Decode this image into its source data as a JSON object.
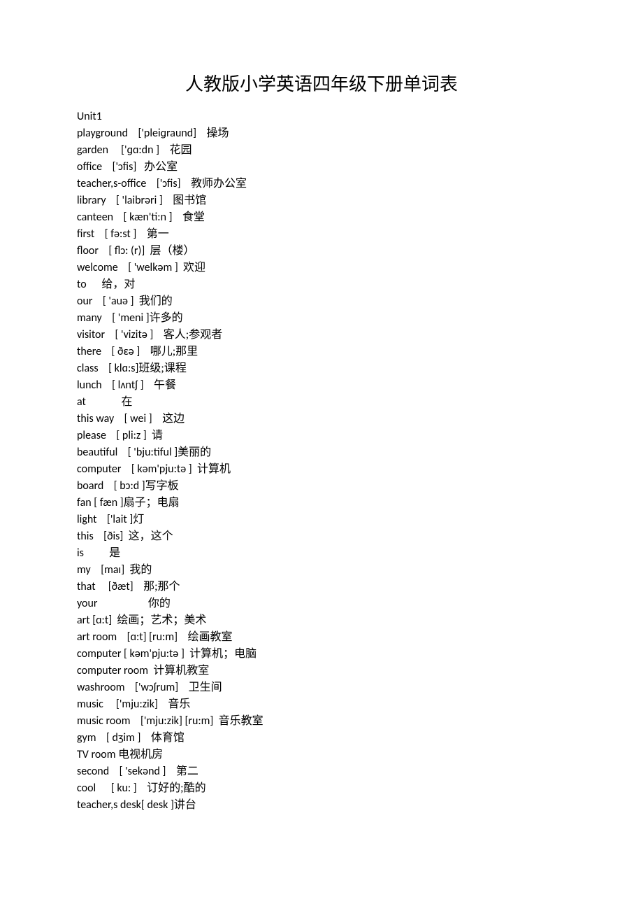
{
  "title": "人教版小学英语四年级下册单词表",
  "unit_label": "Unit1",
  "entries": [
    {
      "en": "playground",
      "sep1": "    ",
      "ipa": "['pleiɡraund]",
      "sep2": "    ",
      "zh": "操场"
    },
    {
      "en": "garden",
      "sep1": "     ",
      "ipa": "['ɡɑ:dn ]",
      "sep2": "    ",
      "zh": "花园"
    },
    {
      "en": "office",
      "sep1": "    ",
      "ipa": "['ɔfis]",
      "sep2": "   ",
      "zh": "办公室"
    },
    {
      "en": "teacher,s-office",
      "sep1": "    ",
      "ipa": "['ɔfis]",
      "sep2": "    ",
      "zh": "教师办公室"
    },
    {
      "en": "library",
      "sep1": "    ",
      "ipa": "[ 'laibrəri ]",
      "sep2": "    ",
      "zh": "图书馆"
    },
    {
      "en": "canteen",
      "sep1": "    ",
      "ipa": "[ kæn'ti:n ]",
      "sep2": "    ",
      "zh": "食堂"
    },
    {
      "en": "first",
      "sep1": "    ",
      "ipa": "[ fə:st ]",
      "sep2": "    ",
      "zh": "第一"
    },
    {
      "en": "floor",
      "sep1": "    ",
      "ipa": "[ flɔ: (r)]",
      "sep2": "  ",
      "zh": "层（楼）"
    },
    {
      "en": "welcome",
      "sep1": "    ",
      "ipa": "[ 'welkəm ]",
      "sep2": "  ",
      "zh": "欢迎"
    },
    {
      "en": "to",
      "sep1": "      ",
      "ipa": "",
      "sep2": "",
      "zh": "给，对"
    },
    {
      "en": "our",
      "sep1": "    ",
      "ipa": "[ 'auə ]",
      "sep2": "  ",
      "zh": "我们的"
    },
    {
      "en": "many",
      "sep1": "    ",
      "ipa": "[ 'meni ]",
      "sep2": "",
      "zh": "许多的"
    },
    {
      "en": "visitor",
      "sep1": "    ",
      "ipa": "[ 'vizitə ]",
      "sep2": "    ",
      "zh": "客人;参观者"
    },
    {
      "en": "there",
      "sep1": "    ",
      "ipa": "[ ðεə ]",
      "sep2": "    ",
      "zh": "哪儿;那里"
    },
    {
      "en": "class",
      "sep1": "    ",
      "ipa": "[ klɑ:s]",
      "sep2": "",
      "zh": "班级;课程"
    },
    {
      "en": "lunch",
      "sep1": "    ",
      "ipa": "[ lʌntʃ ]",
      "sep2": "    ",
      "zh": "午餐"
    },
    {
      "en": "at",
      "sep1": "              ",
      "ipa": "",
      "sep2": "",
      "zh": "在"
    },
    {
      "en": "this way",
      "sep1": "    ",
      "ipa": "[ wei ]",
      "sep2": "    ",
      "zh": "这边"
    },
    {
      "en": "please",
      "sep1": "    ",
      "ipa": "[ pli:z ]",
      "sep2": "  ",
      "zh": "请"
    },
    {
      "en": "beautiful",
      "sep1": "    ",
      "ipa": "[ 'bju:tiful ]",
      "sep2": "",
      "zh": "美丽的"
    },
    {
      "en": "computer",
      "sep1": "    ",
      "ipa": "[ kəm'pju:tə ]",
      "sep2": "  ",
      "zh": "计算机"
    },
    {
      "en": "board",
      "sep1": "    ",
      "ipa": "[ bɔ:d ]",
      "sep2": "",
      "zh": "写字板"
    },
    {
      "en": "fan",
      "sep1": " ",
      "ipa": "[ fæn ]",
      "sep2": "",
      "zh": "扇子；电扇"
    },
    {
      "en": "light",
      "sep1": "    ",
      "ipa": "['lait ]",
      "sep2": "",
      "zh": "灯"
    },
    {
      "en": "this",
      "sep1": "    ",
      "ipa": "[ðis]",
      "sep2": "  ",
      "zh": "这，这个"
    },
    {
      "en": "is",
      "sep1": "          ",
      "ipa": "",
      "sep2": "",
      "zh": "是"
    },
    {
      "en": "my",
      "sep1": "    ",
      "ipa": "[maɪ]",
      "sep2": "  ",
      "zh": "我的"
    },
    {
      "en": "that",
      "sep1": "     ",
      "ipa": "[ðæt]",
      "sep2": "    ",
      "zh": "那;那个"
    },
    {
      "en": "your",
      "sep1": "                    ",
      "ipa": "",
      "sep2": "",
      "zh": "你的"
    },
    {
      "en": "art",
      "sep1": " ",
      "ipa": "[ɑ:t]",
      "sep2": "  ",
      "zh": "绘画；艺术；美术"
    },
    {
      "en": "art room",
      "sep1": "    ",
      "ipa": "[ɑ:t] [ru:m]",
      "sep2": "    ",
      "zh": "绘画教室"
    },
    {
      "en": "computer",
      "sep1": " ",
      "ipa": "[ kəm'pju:tə ]",
      "sep2": "  ",
      "zh": "计算机；电脑"
    },
    {
      "en": "computer room",
      "sep1": "  ",
      "ipa": "",
      "sep2": "",
      "zh": "计算机教室"
    },
    {
      "en": "washroom",
      "sep1": "    ",
      "ipa": "['wɔʃrum]",
      "sep2": "    ",
      "zh": "卫生间"
    },
    {
      "en": "music",
      "sep1": "     ",
      "ipa": "['mju:zik]",
      "sep2": "    ",
      "zh": "音乐"
    },
    {
      "en": "music room",
      "sep1": "    ",
      "ipa": "['mju:zik] [ru:m]",
      "sep2": "  ",
      "zh": "音乐教室"
    },
    {
      "en": "gym",
      "sep1": "    ",
      "ipa": "[ dʒim ]",
      "sep2": "    ",
      "zh": "体育馆"
    },
    {
      "en": "TV room",
      "sep1": " ",
      "ipa": "",
      "sep2": "",
      "zh": "电视机房"
    },
    {
      "en": "second",
      "sep1": "    ",
      "ipa": "[ 'sekənd ]",
      "sep2": "    ",
      "zh": "第二"
    },
    {
      "en": "cool",
      "sep1": "      ",
      "ipa": "[ ku: ]",
      "sep2": "    ",
      "zh": "订好的;酷的"
    },
    {
      "en": "teacher,s desk",
      "sep1": "",
      "ipa": "[ desk ]",
      "sep2": "",
      "zh": "讲台"
    }
  ]
}
